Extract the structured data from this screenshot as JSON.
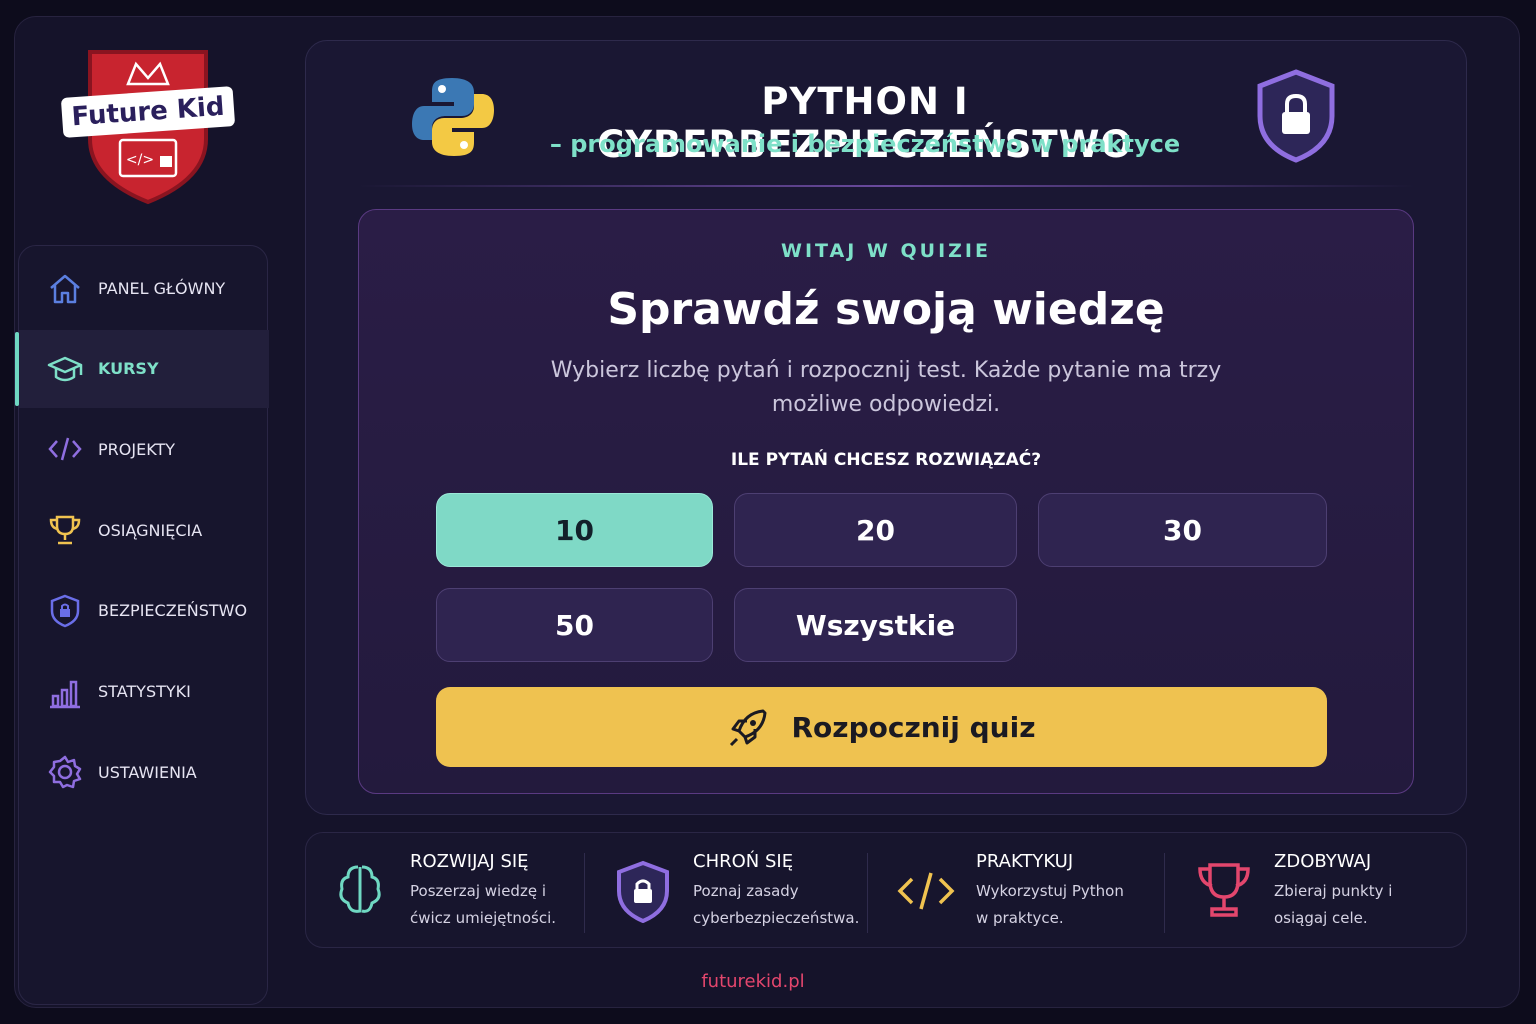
{
  "logo": {
    "text": "Future Kid"
  },
  "nav": [
    {
      "label": "PANEL GŁÓWNY",
      "active": false
    },
    {
      "label": "KURSY",
      "active": true
    },
    {
      "label": "PROJEKTY",
      "active": false
    },
    {
      "label": "OSIĄGNIĘCIA",
      "active": false
    },
    {
      "label": "BEZPIECZEŃSTWO",
      "active": false
    },
    {
      "label": "STATYSTYKI",
      "active": false
    },
    {
      "label": "USTAWIENIA",
      "active": false
    }
  ],
  "header": {
    "title": "PYTHON I CYBERBEZPIECZEŃSTWO",
    "subtitle": "– programowanie i bezpieczeństwo w praktyce"
  },
  "quiz": {
    "eyebrow": "WITAJ W QUIZIE",
    "title": "Sprawdź swoją wiedzę",
    "description": "Wybierz liczbę pytań i rozpocznij test. Każde pytanie ma trzy możliwe odpowiedzi.",
    "question": "ILE PYTAŃ CHCESZ ROZWIĄZAĆ?",
    "options": [
      {
        "label": "10",
        "selected": true
      },
      {
        "label": "20",
        "selected": false
      },
      {
        "label": "30",
        "selected": false
      },
      {
        "label": "50",
        "selected": false
      },
      {
        "label": "Wszystkie",
        "selected": false
      }
    ],
    "start": "Rozpocznij quiz"
  },
  "features": [
    {
      "title": "ROZWIJAJ SIĘ",
      "text": "Poszerzaj wiedzę i ćwicz umiejętności."
    },
    {
      "title": "CHROŃ SIĘ",
      "text": "Poznaj zasady cyberbezpieczeństwa."
    },
    {
      "title": "PRAKTYKUJ",
      "text": "Wykorzystuj Python w praktyce."
    },
    {
      "title": "ZDOBYWAJ",
      "text": "Zbieraj punkty i osiągaj cele."
    }
  ],
  "footer": "futurekid.pl"
}
